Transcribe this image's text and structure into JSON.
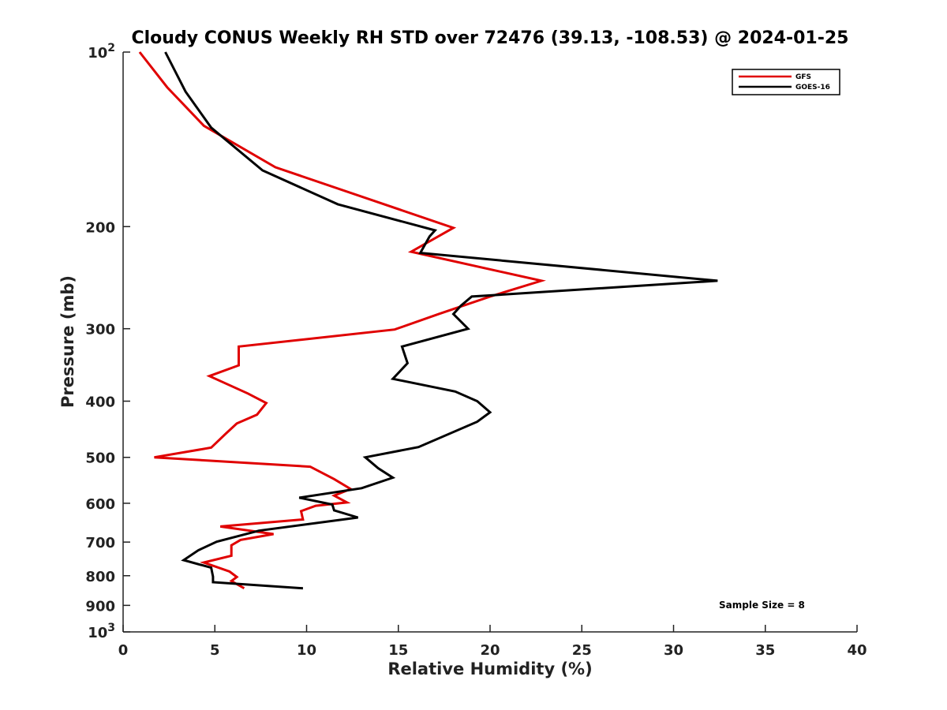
{
  "chart_data": {
    "type": "line",
    "title": "Cloudy CONUS Weekly RH STD over 72476 (39.13, -108.53) @ 2024-01-25",
    "xlabel": "Relative Humidity (%)",
    "ylabel": "Pressure (mb)",
    "xlim": [
      0,
      40
    ],
    "ylim": [
      100,
      1000
    ],
    "y_scale": "log",
    "y_reversed": true,
    "grid": false,
    "legend_position": "top-right",
    "x_ticks": [
      "0",
      "5",
      "10",
      "15",
      "20",
      "25",
      "30",
      "35",
      "40"
    ],
    "y_ticks": [
      {
        "value": 100,
        "base": "10",
        "exp": "2"
      },
      {
        "value": 200,
        "label": "200"
      },
      {
        "value": 300,
        "label": "300"
      },
      {
        "value": 400,
        "label": "400"
      },
      {
        "value": 500,
        "label": "500"
      },
      {
        "value": 600,
        "label": "600"
      },
      {
        "value": 700,
        "label": "700"
      },
      {
        "value": 800,
        "label": "800"
      },
      {
        "value": 900,
        "label": "900"
      },
      {
        "value": 1000,
        "base": "10",
        "exp": "3"
      }
    ],
    "annotation": "Sample Size = 8",
    "series": [
      {
        "name": "GFS",
        "color": "#e00000",
        "points": [
          [
            0.9,
            100
          ],
          [
            2.4,
            115
          ],
          [
            4.4,
            134
          ],
          [
            8.3,
            158
          ],
          [
            18.0,
            201
          ],
          [
            15.7,
            221
          ],
          [
            22.8,
            248
          ],
          [
            20.0,
            264
          ],
          [
            17.2,
            283
          ],
          [
            14.8,
            301
          ],
          [
            6.3,
            322
          ],
          [
            6.3,
            347
          ],
          [
            4.7,
            362
          ],
          [
            6.8,
            388
          ],
          [
            7.8,
            403
          ],
          [
            7.3,
            422
          ],
          [
            6.2,
            437
          ],
          [
            5.6,
            455
          ],
          [
            4.8,
            481
          ],
          [
            1.7,
            500
          ],
          [
            10.2,
            519
          ],
          [
            11.5,
            545
          ],
          [
            12.4,
            567
          ],
          [
            11.5,
            582
          ],
          [
            12.2,
            598
          ],
          [
            10.5,
            606
          ],
          [
            9.7,
            619
          ],
          [
            9.8,
            640
          ],
          [
            5.3,
            658
          ],
          [
            8.2,
            678
          ],
          [
            6.4,
            694
          ],
          [
            5.9,
            709
          ],
          [
            5.9,
            739
          ],
          [
            4.4,
            759
          ],
          [
            5.8,
            787
          ],
          [
            6.2,
            804
          ],
          [
            5.9,
            817
          ],
          [
            6.6,
            841
          ]
        ]
      },
      {
        "name": "GOES-16",
        "color": "#000000",
        "points": [
          [
            2.3,
            100
          ],
          [
            3.4,
            117
          ],
          [
            4.8,
            135
          ],
          [
            7.6,
            160
          ],
          [
            11.7,
            183
          ],
          [
            17.0,
            203
          ],
          [
            16.7,
            208
          ],
          [
            16.2,
            222
          ],
          [
            32.4,
            248
          ],
          [
            19.0,
            264
          ],
          [
            18.4,
            274
          ],
          [
            18.0,
            283
          ],
          [
            18.8,
            300
          ],
          [
            15.2,
            322
          ],
          [
            15.5,
            344
          ],
          [
            14.7,
            366
          ],
          [
            18.1,
            385
          ],
          [
            19.3,
            400
          ],
          [
            20.0,
            418
          ],
          [
            19.3,
            434
          ],
          [
            16.1,
            480
          ],
          [
            13.2,
            500
          ],
          [
            13.9,
            522
          ],
          [
            14.7,
            542
          ],
          [
            13.0,
            565
          ],
          [
            9.6,
            587
          ],
          [
            11.4,
            603
          ],
          [
            11.5,
            617
          ],
          [
            12.8,
            635
          ],
          [
            7.4,
            669
          ],
          [
            5.1,
            699
          ],
          [
            4.1,
            723
          ],
          [
            3.3,
            752
          ],
          [
            4.8,
            775
          ],
          [
            4.9,
            803
          ],
          [
            4.9,
            821
          ],
          [
            9.8,
            841
          ]
        ]
      }
    ]
  }
}
